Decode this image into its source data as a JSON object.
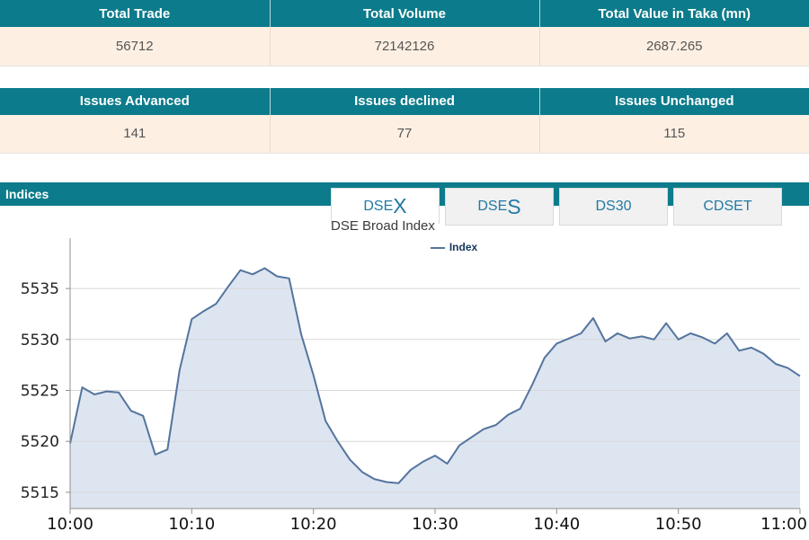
{
  "summary_tables": [
    {
      "headers": [
        "Total Trade",
        "Total Volume",
        "Total Value in Taka (mn)"
      ],
      "values": [
        "56712",
        "72142126",
        "2687.265"
      ]
    },
    {
      "headers": [
        "Issues Advanced",
        "Issues declined",
        "Issues Unchanged"
      ],
      "values": [
        "141",
        "77",
        "115"
      ]
    }
  ],
  "indices": {
    "title": "Indices"
  },
  "tabs": [
    {
      "text": "DSE",
      "big": "X",
      "active": true
    },
    {
      "text": "DSE",
      "big": "S",
      "active": false
    },
    {
      "text": "DS30",
      "big": "",
      "active": false
    },
    {
      "text": "CDSET",
      "big": "",
      "active": false
    }
  ],
  "colors": {
    "header_bg": "#0c7b8b",
    "row_bg": "#fdf0e3",
    "tab_text": "#2279a3",
    "line": "#54749e",
    "fill": "#dde5f1",
    "grid": "#d7d7d7",
    "axis": "#8f8f8f",
    "legend_text": "#16365c"
  },
  "chart_data": {
    "type": "area",
    "title": "DSE Broad Index",
    "legend": [
      "Index"
    ],
    "legend_position": "top-center",
    "xlabel": "",
    "ylabel": "",
    "grid": "horizontal",
    "ylim": [
      5513.4,
      5539.6
    ],
    "yticks": [
      5515,
      5520,
      5525,
      5530,
      5535
    ],
    "xticks": [
      {
        "minute": 0,
        "label": "10:00"
      },
      {
        "minute": 10,
        "label": "10:10"
      },
      {
        "minute": 20,
        "label": "10:20"
      },
      {
        "minute": 30,
        "label": "10:30"
      },
      {
        "minute": 40,
        "label": "10:40"
      },
      {
        "minute": 50,
        "label": "10:50"
      },
      {
        "minute": 60,
        "label": "11:00"
      }
    ],
    "values": [
      5519.8,
      5525.3,
      5524.6,
      5524.9,
      5524.8,
      5523.0,
      5522.5,
      5518.7,
      5519.2,
      5527.0,
      5532.0,
      5532.8,
      5533.5,
      5535.2,
      5536.8,
      5536.4,
      5537.0,
      5536.2,
      5536.0,
      5530.5,
      5526.5,
      5522.0,
      5520.0,
      5518.2,
      5517.0,
      5516.3,
      5516.0,
      5515.9,
      5517.2,
      5518.0,
      5518.6,
      5517.8,
      5519.6,
      5520.4,
      5521.2,
      5521.6,
      5522.6,
      5523.2,
      5525.6,
      5528.2,
      5529.6,
      5530.1,
      5530.6,
      5532.1,
      5529.8,
      5530.6,
      5530.1,
      5530.3,
      5530.0,
      5531.6,
      5530.0,
      5530.6,
      5530.2,
      5529.6,
      5530.6,
      5528.9,
      5529.2,
      5528.6,
      5527.6,
      5527.2,
      5526.4
    ]
  }
}
